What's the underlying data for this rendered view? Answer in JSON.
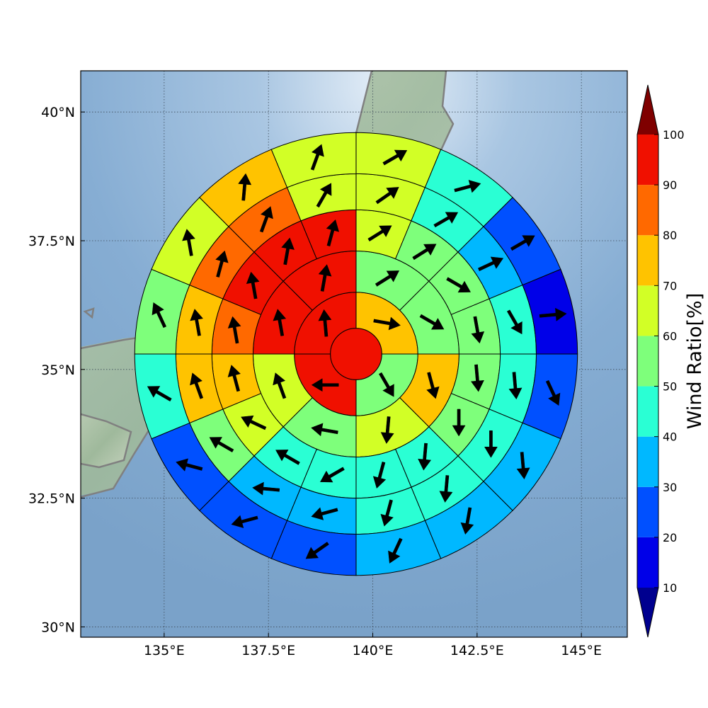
{
  "chart_data": {
    "type": "heatmap",
    "title": "",
    "geometry": "polar-sector-grid",
    "center": {
      "lon": 139.6,
      "lat": 35.3
    },
    "xlabel": "",
    "ylabel": "",
    "xlim": [
      133.0,
      146.1
    ],
    "ylim": [
      29.8,
      40.8
    ],
    "grid": true,
    "x_ticks": [
      {
        "value": 135.0,
        "label": "135°E"
      },
      {
        "value": 137.5,
        "label": "137.5°E"
      },
      {
        "value": 140.0,
        "label": "140°E"
      },
      {
        "value": 142.5,
        "label": "142.5°E"
      },
      {
        "value": 145.0,
        "label": "145°E"
      }
    ],
    "y_ticks": [
      {
        "value": 30.0,
        "label": "30°N"
      },
      {
        "value": 32.5,
        "label": "32.5°N"
      },
      {
        "value": 35.0,
        "label": "35°N"
      },
      {
        "value": 37.5,
        "label": "37.5°N"
      },
      {
        "value": 40.0,
        "label": "40°N"
      }
    ],
    "rings_deg_lat": [
      0.5,
      1.2,
      2.0,
      2.8,
      3.5,
      4.3
    ],
    "sectors_per_ring": [
      1,
      4,
      8,
      16,
      16,
      16
    ],
    "sector_order": "clockwise from north",
    "rings": [
      {
        "ratios": [
          95
        ]
      },
      {
        "ratios": [
          75,
          55,
          95,
          95
        ],
        "wind_dir": [
          100,
          150,
          270,
          355
        ]
      },
      {
        "ratios": [
          55,
          55,
          75,
          65,
          55,
          65,
          95,
          95
        ],
        "wind_dir": [
          58,
          120,
          165,
          185,
          280,
          340,
          350,
          10
        ]
      },
      {
        "ratios": [
          65,
          55,
          55,
          55,
          55,
          55,
          45,
          45,
          45,
          45,
          65,
          75,
          85,
          95,
          95,
          95
        ],
        "wind_dir": [
          58,
          58,
          120,
          170,
          175,
          180,
          185,
          195,
          240,
          300,
          295,
          345,
          350,
          350,
          10,
          15
        ]
      },
      {
        "ratios": [
          65,
          45,
          35,
          45,
          45,
          45,
          45,
          45,
          35,
          35,
          55,
          75,
          75,
          85,
          85,
          65
        ],
        "wind_dir": [
          55,
          60,
          65,
          150,
          175,
          180,
          185,
          195,
          255,
          275,
          300,
          340,
          350,
          15,
          20,
          30
        ]
      },
      {
        "ratios": [
          65,
          45,
          25,
          15,
          25,
          35,
          35,
          35,
          25,
          25,
          25,
          45,
          55,
          65,
          75,
          65
        ],
        "wind_dir": [
          60,
          75,
          60,
          85,
          155,
          175,
          190,
          205,
          235,
          255,
          285,
          300,
          335,
          350,
          5,
          20
        ]
      }
    ],
    "colorbar": {
      "title": "Wind Ratio[%]",
      "boundaries": [
        10,
        20,
        30,
        40,
        50,
        60,
        70,
        80,
        90,
        100
      ],
      "tick_labels": [
        "10",
        "20",
        "30",
        "40",
        "50",
        "60",
        "70",
        "80",
        "90",
        "100"
      ],
      "extend": "both",
      "under_color": "#00008f",
      "over_color": "#7f0000",
      "colors": [
        "#0000e8",
        "#0050ff",
        "#00b8ff",
        "#2affd4",
        "#7eff7b",
        "#d2ff26",
        "#ffc300",
        "#ff6900",
        "#f01000"
      ]
    },
    "coastline_color": "#808080"
  }
}
